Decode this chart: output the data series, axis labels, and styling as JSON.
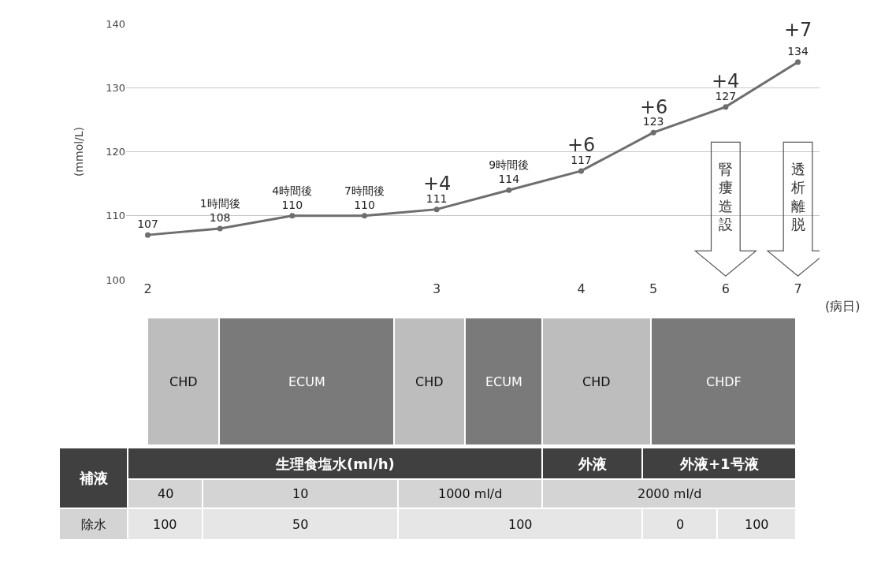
{
  "chart_data": [
    {
      "type": "line",
      "ylabel": "(mmol/L)",
      "xlabel": "(病日)",
      "categories": [
        "2",
        null,
        null,
        null,
        "3",
        null,
        "4",
        "5",
        "6",
        "7"
      ],
      "series": [
        {
          "color": "#6e6e6e",
          "values": [
            107,
            108,
            110,
            110,
            111,
            114,
            117,
            123,
            127,
            134
          ]
        }
      ],
      "value_labels": [
        "107",
        "1時間後\n108",
        "4時間後\n110",
        "7時間後\n110",
        "111",
        "9時間後\n114",
        "117",
        "123",
        "127",
        "134"
      ],
      "ylim": [
        100,
        140
      ],
      "yticks": [
        100,
        110,
        120,
        130,
        140
      ],
      "grid": "y",
      "marker": "circle",
      "line_style": "solid",
      "annotations": [
        "+4",
        "+6",
        "+6",
        "+4",
        "+7",
        "腎瘻造設",
        "透析離脱"
      ]
    },
    {
      "type": "other",
      "annotations": [
        "CHD",
        "ECUM",
        "CHD",
        "ECUM",
        "CHD",
        "CHDF",
        "補液",
        "生理食塩水(ml/h)",
        "外液",
        "外液+1号液",
        "40",
        "10",
        "1000 ml/d",
        "2000 ml/d",
        "除水",
        "100",
        "50",
        "100",
        "0",
        "100"
      ]
    }
  ]
}
